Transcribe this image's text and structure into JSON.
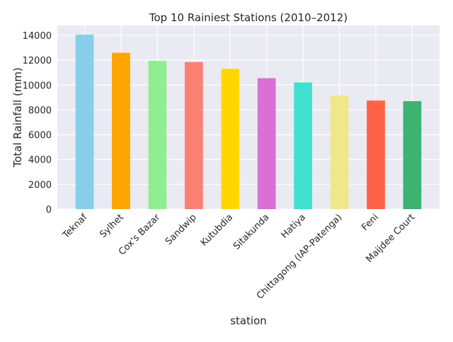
{
  "chart_data": {
    "type": "bar",
    "title": "Top 10 Rainiest Stations (2010–2012)",
    "xlabel": "station",
    "ylabel": "Total Rainfall (mm)",
    "ylim": [
      0,
      14800
    ],
    "yticks": [
      0,
      2000,
      4000,
      6000,
      8000,
      10000,
      12000,
      14000
    ],
    "grid": true,
    "categories": [
      "Teknaf",
      "Sylhet",
      "Cox's Bazar",
      "Sandwip",
      "Kutubdia",
      "Sitakunda",
      "Hatiya",
      "Chittagong (IAP-Patenga)",
      "Feni",
      "Maijdee Court"
    ],
    "values": [
      14050,
      12600,
      11950,
      11850,
      11300,
      10550,
      10200,
      9150,
      8750,
      8700
    ],
    "colors": [
      "#87CEEB",
      "#FFA500",
      "#90EE90",
      "#FA8072",
      "#FFD700",
      "#DA70D6",
      "#40E0D0",
      "#F0E68C",
      "#FF6347",
      "#3CB371"
    ]
  }
}
